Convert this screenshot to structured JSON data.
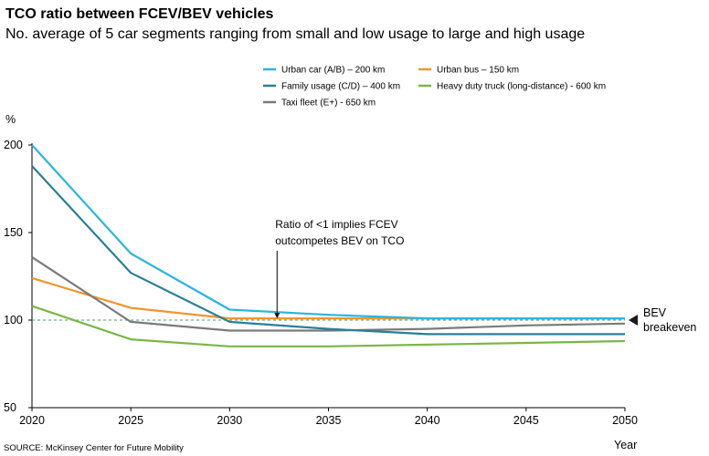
{
  "chart_data": {
    "type": "line",
    "title": "TCO ratio between FCEV/BEV vehicles",
    "subtitle": "No. average of 5 car segments ranging from small and low usage to large and high usage",
    "xlabel": "Year",
    "ylabel": "%",
    "x": [
      2020,
      2025,
      2030,
      2035,
      2040,
      2045,
      2050
    ],
    "x_ticks": [
      "2020",
      "2025",
      "2030",
      "2035",
      "2040",
      "2045",
      "2050"
    ],
    "y_ticks": [
      "50",
      "100",
      "150",
      "200"
    ],
    "xlim": [
      2020,
      2050
    ],
    "ylim": [
      50,
      200
    ],
    "grid": false,
    "legend_position": "top",
    "series": [
      {
        "name": "Urban car (A/B) – 200 km",
        "color": "#2bb5dc",
        "values": [
          200,
          138,
          106,
          103,
          101,
          101,
          101
        ]
      },
      {
        "name": "Family usage (C/D) – 400 km",
        "color": "#2a7f97",
        "values": [
          188,
          127,
          99,
          95,
          92,
          92,
          92
        ]
      },
      {
        "name": "Taxi fleet (E+) - 650 km",
        "color": "#7a7a7a",
        "values": [
          136,
          99,
          94,
          94,
          95,
          97,
          98
        ]
      },
      {
        "name": "Urban bus – 150 km",
        "color": "#f0962e",
        "values": [
          124,
          107,
          101,
          101,
          101,
          101,
          101
        ]
      },
      {
        "name": "Heavy duty truck (long-distance) - 600 km",
        "color": "#7ab648",
        "values": [
          108,
          89,
          85,
          85,
          86,
          87,
          88
        ]
      }
    ],
    "reference_line": {
      "value": 100,
      "label_line1": "BEV",
      "label_line2": "breakeven"
    },
    "annotation": {
      "line1": "Ratio of <1 implies FCEV",
      "line2": "outcompetes BEV on TCO",
      "x": 2032.4,
      "y": 100
    }
  },
  "source": "SOURCE: McKinsey Center for Future Mobility"
}
